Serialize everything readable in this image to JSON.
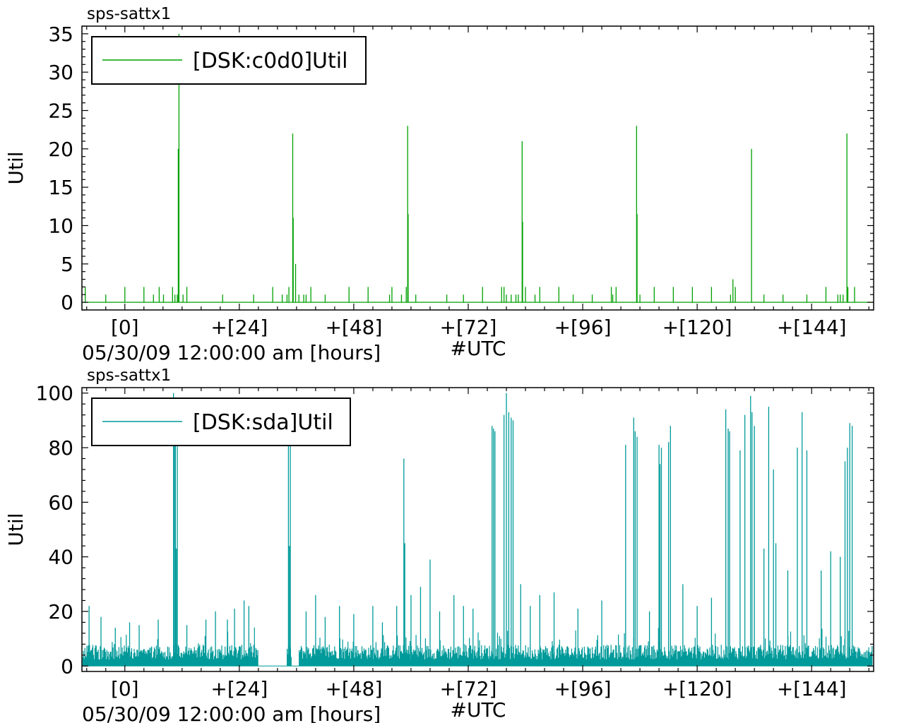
{
  "chart_data": [
    {
      "type": "line",
      "title": "sps-sattx1",
      "xlabel": "05/30/09 12:00:00 am [hours]",
      "xlabel_right": "#UTC",
      "ylabel": "Util",
      "xlim": [
        -9,
        157
      ],
      "ylim": [
        -1,
        36
      ],
      "xticks": [
        0,
        24,
        48,
        72,
        96,
        120,
        144
      ],
      "xtick_labels": [
        "[0]",
        "+[24]",
        "+[48]",
        "+[72]",
        "+[96]",
        "+[120]",
        "+[144]"
      ],
      "yticks": [
        0,
        5,
        10,
        15,
        20,
        25,
        30,
        35
      ],
      "ytick_labels": [
        "0",
        "5",
        "10",
        "15",
        "20",
        "25",
        "30",
        "35"
      ],
      "grid": false,
      "legend_position": "top-left",
      "series": [
        {
          "name": "[DSK:c0d0]Util",
          "color": "#00a000",
          "baseline": 0,
          "spikes": [
            [
              -8.3,
              2
            ],
            [
              -4,
              1
            ],
            [
              0,
              2
            ],
            [
              4,
              2
            ],
            [
              6,
              1
            ],
            [
              7.2,
              2
            ],
            [
              8.1,
              1
            ],
            [
              10,
              2
            ],
            [
              10.5,
              1
            ],
            [
              11,
              1
            ],
            [
              11.2,
              20
            ],
            [
              11.35,
              35
            ],
            [
              12.2,
              1
            ],
            [
              13,
              2
            ],
            [
              20.5,
              1
            ],
            [
              27,
              1
            ],
            [
              31,
              2
            ],
            [
              33,
              1
            ],
            [
              34,
              1
            ],
            [
              34.4,
              2
            ],
            [
              35.2,
              22
            ],
            [
              35.3,
              11
            ],
            [
              35.8,
              5
            ],
            [
              36.5,
              1
            ],
            [
              37.5,
              1
            ],
            [
              38,
              1
            ],
            [
              39,
              2
            ],
            [
              42,
              1
            ],
            [
              47,
              2
            ],
            [
              51,
              2
            ],
            [
              55.5,
              1
            ],
            [
              56,
              2
            ],
            [
              58,
              1
            ],
            [
              59,
              2
            ],
            [
              59.3,
              23
            ],
            [
              59.4,
              11.5
            ],
            [
              61,
              1
            ],
            [
              67.5,
              1
            ],
            [
              71,
              1
            ],
            [
              75,
              2
            ],
            [
              79,
              2
            ],
            [
              79.5,
              2
            ],
            [
              80,
              1
            ],
            [
              81,
              1
            ],
            [
              82,
              1
            ],
            [
              82.5,
              1
            ],
            [
              83.3,
              21
            ],
            [
              83.4,
              10.5
            ],
            [
              84,
              2
            ],
            [
              86,
              1
            ],
            [
              87,
              2
            ],
            [
              91,
              2
            ],
            [
              94,
              1
            ],
            [
              98,
              1
            ],
            [
              102,
              2
            ],
            [
              102.3,
              1
            ],
            [
              103,
              2
            ],
            [
              107.3,
              23
            ],
            [
              107.4,
              11.5
            ],
            [
              108,
              1
            ],
            [
              111,
              2
            ],
            [
              115,
              2
            ],
            [
              119,
              2
            ],
            [
              123,
              2
            ],
            [
              127,
              1
            ],
            [
              127.5,
              3
            ],
            [
              128,
              2
            ],
            [
              131.4,
              20
            ],
            [
              134,
              1
            ],
            [
              138,
              1
            ],
            [
              143,
              1
            ],
            [
              147,
              2
            ],
            [
              149.5,
              1
            ],
            [
              150,
              1
            ],
            [
              150.6,
              1
            ],
            [
              151.4,
              22
            ],
            [
              151.6,
              2
            ],
            [
              153,
              2
            ]
          ]
        }
      ]
    },
    {
      "type": "line",
      "title": "sps-sattx1",
      "xlabel": "05/30/09 12:00:00 am [hours]",
      "xlabel_right": "#UTC",
      "ylabel": "Util",
      "xlim": [
        -9,
        157
      ],
      "ylim": [
        -2,
        102
      ],
      "xticks": [
        0,
        24,
        48,
        72,
        96,
        120,
        144
      ],
      "xtick_labels": [
        "[0]",
        "+[24]",
        "+[48]",
        "+[72]",
        "+[96]",
        "+[120]",
        "+[144]"
      ],
      "yticks": [
        0,
        20,
        40,
        60,
        80,
        100
      ],
      "ytick_labels": [
        "0",
        "20",
        "40",
        "60",
        "80",
        "100"
      ],
      "grid": false,
      "legend_position": "top-left",
      "series": [
        {
          "name": "[DSK:sda]Util",
          "color": "#009a9a",
          "noise_level": 6,
          "noise_max": 13,
          "quiet_ranges": [
            [
              28,
              34
            ],
            [
              35,
              36.5
            ]
          ],
          "spikes": [
            [
              -7.5,
              22
            ],
            [
              -5,
              18
            ],
            [
              -2,
              14
            ],
            [
              1,
              16
            ],
            [
              3,
              15
            ],
            [
              7,
              17
            ],
            [
              10.2,
              100
            ],
            [
              10.4,
              95
            ],
            [
              10.6,
              98
            ],
            [
              10.8,
              43
            ],
            [
              11,
              90
            ],
            [
              13,
              15
            ],
            [
              17,
              17
            ],
            [
              19,
              20
            ],
            [
              21.5,
              17
            ],
            [
              23,
              21
            ],
            [
              25,
              24
            ],
            [
              26,
              22
            ],
            [
              34.3,
              90
            ],
            [
              34.5,
              44
            ],
            [
              34.7,
              85
            ],
            [
              38,
              20
            ],
            [
              40,
              26
            ],
            [
              42,
              18
            ],
            [
              45,
              22
            ],
            [
              48,
              19
            ],
            [
              52,
              22
            ],
            [
              54,
              16
            ],
            [
              57,
              22
            ],
            [
              58.5,
              76
            ],
            [
              58.7,
              45
            ],
            [
              60,
              26
            ],
            [
              62,
              29
            ],
            [
              64,
              39
            ],
            [
              66,
              20
            ],
            [
              69,
              26
            ],
            [
              71,
              22
            ],
            [
              73,
              21
            ],
            [
              77,
              88
            ],
            [
              77.3,
              87
            ],
            [
              77.6,
              86
            ],
            [
              79.5,
              92
            ],
            [
              80,
              100
            ],
            [
              80.5,
              93
            ],
            [
              81,
              91
            ],
            [
              81.4,
              90
            ],
            [
              83,
              30
            ],
            [
              85,
              22
            ],
            [
              87,
              26
            ],
            [
              90,
              27
            ],
            [
              95,
              21
            ],
            [
              100,
              24
            ],
            [
              105,
              81
            ],
            [
              106.7,
              91
            ],
            [
              107,
              86
            ],
            [
              107.4,
              84
            ],
            [
              110,
              20
            ],
            [
              112,
              81
            ],
            [
              112.2,
              74
            ],
            [
              112.5,
              80
            ],
            [
              114,
              82
            ],
            [
              114.4,
              88
            ],
            [
              117,
              30
            ],
            [
              120,
              22
            ],
            [
              123,
              25
            ],
            [
              126,
              94
            ],
            [
              126.5,
              87
            ],
            [
              126.8,
              86
            ],
            [
              129,
              79
            ],
            [
              130,
              92
            ],
            [
              131.2,
              99
            ],
            [
              131.5,
              93
            ],
            [
              132,
              88
            ],
            [
              134,
              43
            ],
            [
              135,
              95
            ],
            [
              136,
              72
            ],
            [
              136.5,
              45
            ],
            [
              139,
              35
            ],
            [
              141,
              80
            ],
            [
              142,
              93
            ],
            [
              143,
              79
            ],
            [
              146,
              35
            ],
            [
              148,
              42
            ],
            [
              150,
              40
            ],
            [
              151,
              75
            ],
            [
              151.5,
              80
            ],
            [
              152,
              89
            ],
            [
              152.5,
              88
            ]
          ]
        }
      ]
    }
  ]
}
